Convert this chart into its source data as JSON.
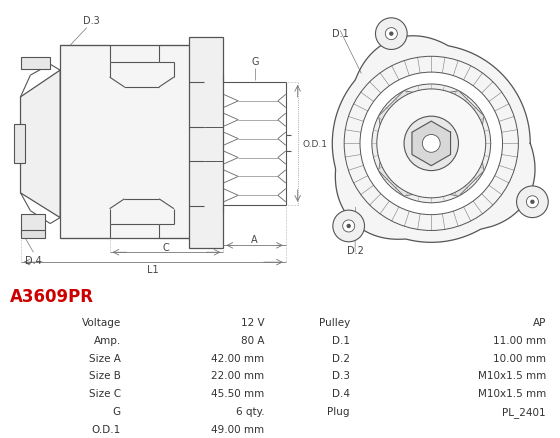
{
  "title": "A3609PR",
  "title_color": "#cc0000",
  "bg_color": "#ffffff",
  "table_rows": [
    [
      "Voltage",
      "12 V",
      "Pulley",
      "AP"
    ],
    [
      "Amp.",
      "80 A",
      "D.1",
      "11.00 mm"
    ],
    [
      "Size A",
      "42.00 mm",
      "D.2",
      "10.00 mm"
    ],
    [
      "Size B",
      "22.00 mm",
      "D.3",
      "M10x1.5 mm"
    ],
    [
      "Size C",
      "45.50 mm",
      "D.4",
      "M10x1.5 mm"
    ],
    [
      "G",
      "6 qty.",
      "Plug",
      "PL_2401"
    ],
    [
      "O.D.1",
      "49.00 mm",
      "",
      ""
    ]
  ],
  "header_bg": "#e2e2e2",
  "row_bg_label": "#ebebeb",
  "row_bg_value": "#f7f7f7",
  "font_size": 7.5,
  "line_color": "#555555",
  "dim_color": "#777777"
}
